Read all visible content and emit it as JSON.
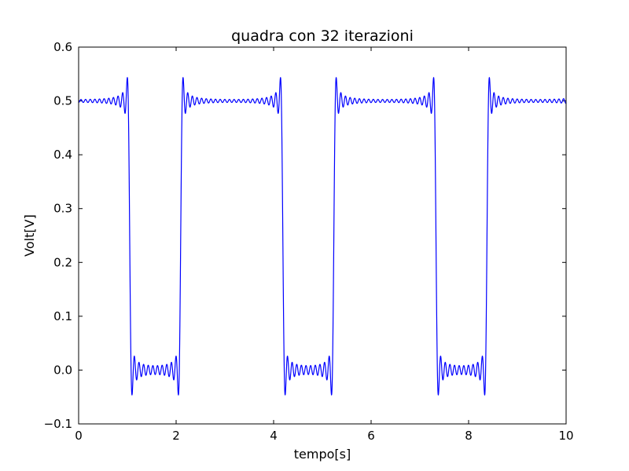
{
  "chart_data": {
    "type": "line",
    "title": "quadra con 32 iterazioni",
    "xlabel": "tempo[s]",
    "ylabel": "Volt[V]",
    "xlim": [
      0,
      10
    ],
    "ylim": [
      -0.1,
      0.6
    ],
    "grid": false,
    "x_ticks": [
      0,
      2,
      4,
      6,
      8,
      10
    ],
    "y_ticks": [
      -0.1,
      0.0,
      0.1,
      0.2,
      0.3,
      0.4,
      0.5,
      0.6
    ],
    "x_tick_labels": [
      "0",
      "2",
      "4",
      "6",
      "8",
      "10"
    ],
    "y_tick_labels": [
      "−0.1",
      "0.0",
      "0.1",
      "0.2",
      "0.3",
      "0.4",
      "0.5",
      "0.6"
    ],
    "series": [
      {
        "color": "#0000ff",
        "square_wave": {
          "high": 0.5,
          "low": 0.0,
          "period": 3.14159,
          "duty": 0.666667,
          "first_fall": 1.0472,
          "harmonics": 32
        },
        "x": [
          0,
          0.9,
          1.0,
          1.03,
          1.05,
          1.07,
          1.1,
          1.2,
          1.9,
          2.03,
          2.07,
          2.09,
          2.11,
          2.14,
          2.25,
          3.0,
          4.1,
          4.17,
          4.19,
          4.21,
          4.24,
          4.35,
          5.1,
          5.17,
          5.21,
          5.24,
          5.27,
          5.35,
          6.2,
          7.25,
          7.31,
          7.33,
          7.35,
          7.38,
          7.5,
          8.3,
          8.34,
          8.37,
          8.39,
          8.42,
          8.55,
          10
        ],
        "y": [
          0.5,
          0.5,
          0.51,
          0.537,
          0.25,
          -0.035,
          0.0,
          0.0,
          0.0,
          0.02,
          -0.04,
          0.25,
          0.543,
          0.48,
          0.5,
          0.5,
          0.51,
          0.533,
          0.25,
          -0.03,
          0.0,
          0.0,
          0.0,
          0.02,
          -0.043,
          0.25,
          0.545,
          0.5,
          0.5,
          0.51,
          0.538,
          0.25,
          -0.038,
          0.0,
          0.0,
          0.0,
          -0.043,
          0.25,
          0.545,
          0.48,
          0.5,
          0.5
        ]
      }
    ]
  }
}
